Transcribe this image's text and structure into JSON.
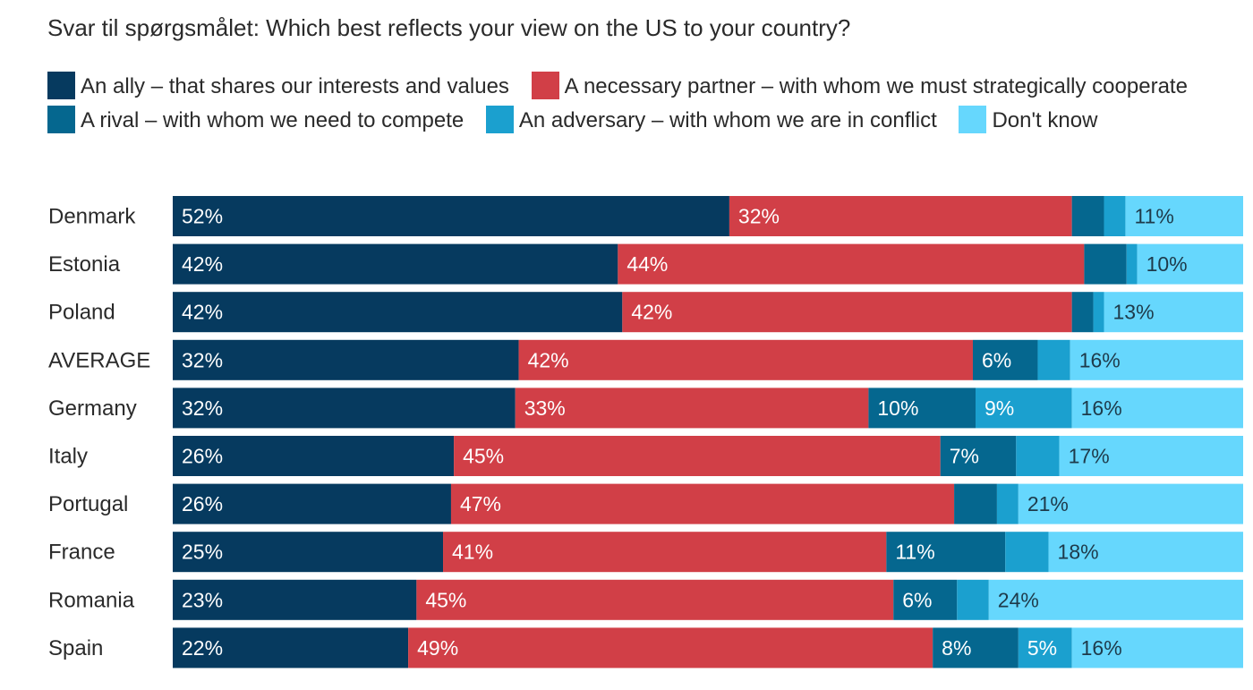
{
  "chart_data": {
    "type": "bar",
    "orientation": "horizontal",
    "stacked": true,
    "title": "Svar til spørgsmålet: Which best reflects your view on the US to your country?",
    "xlabel": "",
    "ylabel": "",
    "xlim": [
      0,
      100
    ],
    "grid": false,
    "legend_position": "top",
    "categories": [
      "Denmark",
      "Estonia",
      "Poland",
      "AVERAGE",
      "Germany",
      "Italy",
      "Portugal",
      "France",
      "Romania",
      "Spain"
    ],
    "series": [
      {
        "name": "An ally – that shares our interests and values",
        "color": "#063a5f",
        "label_color": "#ffffff",
        "values": [
          52,
          42,
          42,
          32,
          32,
          26,
          26,
          25,
          23,
          22
        ],
        "labels": [
          "52%",
          "42%",
          "42%",
          "32%",
          "32%",
          "26%",
          "26%",
          "25%",
          "23%",
          "22%"
        ]
      },
      {
        "name": "A necessary partner – with whom we must strategically cooperate",
        "color": "#d13f47",
        "label_color": "#ffffff",
        "values": [
          32,
          44,
          42,
          42,
          33,
          45,
          47,
          41,
          45,
          49
        ],
        "labels": [
          "32%",
          "44%",
          "42%",
          "42%",
          "33%",
          "45%",
          "47%",
          "41%",
          "45%",
          "49%"
        ]
      },
      {
        "name": "A rival – with whom we need to compete",
        "color": "#05678f",
        "label_color": "#ffffff",
        "values": [
          3,
          4,
          2,
          6,
          10,
          7,
          4,
          11,
          6,
          8
        ],
        "labels": [
          "",
          "",
          "",
          "6%",
          "10%",
          "7%",
          "",
          "11%",
          "6%",
          "8%"
        ]
      },
      {
        "name": "An adversary – with whom we are in conflict",
        "color": "#1ba0cf",
        "label_color": "#ffffff",
        "values": [
          2,
          1,
          1,
          3,
          9,
          4,
          2,
          4,
          3,
          5
        ],
        "labels": [
          "",
          "",
          "",
          "",
          "9%",
          "",
          "",
          "",
          "",
          "5%"
        ]
      },
      {
        "name": "Don't know",
        "color": "#66d7fd",
        "label_color": "#1e3a4a",
        "values": [
          11,
          10,
          13,
          16,
          16,
          17,
          21,
          18,
          24,
          16
        ],
        "labels": [
          "11%",
          "10%",
          "13%",
          "16%",
          "16%",
          "17%",
          "21%",
          "18%",
          "24%",
          "16%"
        ]
      }
    ]
  }
}
